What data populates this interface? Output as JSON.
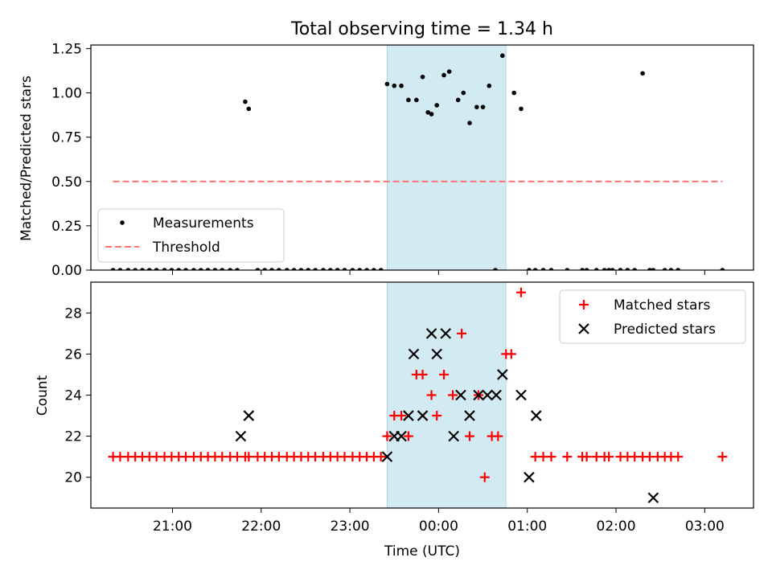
{
  "title": "Total observing time = 1.34 h",
  "colors": {
    "measurement": "#000000",
    "threshold": "#ff7070",
    "matched": "#ff0000",
    "predicted": "#000000",
    "observing_window": "#add8e6"
  },
  "chart_data": [
    {
      "type": "scatter",
      "panel": "top",
      "ylabel": "Matched/Predicted stars",
      "xlabel": "",
      "ylim": [
        0,
        1.27
      ],
      "yticks": [
        "0.00",
        "0.25",
        "0.50",
        "0.75",
        "1.00",
        "1.25"
      ],
      "ytick_values": [
        0,
        0.25,
        0.5,
        0.75,
        1.0,
        1.25
      ],
      "xlim_hours": [
        20.08,
        27.55
      ],
      "xtick_hours": [
        21,
        22,
        23,
        24,
        25,
        26,
        27
      ],
      "shaded_window_hours": [
        23.42,
        24.76
      ],
      "legend": {
        "placement": "lower-left",
        "entries": [
          "Measurements",
          "Threshold"
        ]
      },
      "threshold": {
        "y": 0.5,
        "x_hours": [
          20.33,
          27.2
        ]
      },
      "series": [
        {
          "name": "Measurements",
          "x_hours": [
            20.33,
            20.41,
            20.5,
            20.58,
            20.66,
            20.74,
            20.82,
            20.91,
            20.99,
            21.07,
            21.15,
            21.24,
            21.32,
            21.4,
            21.48,
            21.56,
            21.65,
            21.73,
            21.82,
            21.86,
            21.96,
            22.04,
            22.12,
            22.2,
            22.29,
            22.37,
            22.45,
            22.53,
            22.61,
            22.7,
            22.78,
            22.86,
            22.94,
            23.03,
            23.11,
            23.19,
            23.27,
            23.35,
            23.42,
            23.5,
            23.58,
            23.66,
            23.75,
            23.82,
            23.88,
            23.92,
            23.98,
            24.06,
            24.12,
            24.22,
            24.28,
            24.35,
            24.43,
            24.5,
            24.57,
            24.64,
            24.72,
            24.85,
            24.93,
            25.02,
            25.09,
            25.18,
            25.27,
            25.45,
            25.62,
            25.67,
            25.78,
            25.87,
            25.92,
            25.96,
            26.05,
            26.13,
            26.21,
            26.3,
            26.38,
            26.42,
            26.55,
            26.62,
            26.7,
            27.2
          ],
          "y": [
            0,
            0,
            0,
            0,
            0,
            0,
            0,
            0,
            0,
            0,
            0,
            0,
            0,
            0,
            0,
            0,
            0,
            0,
            0.95,
            0.91,
            0,
            0,
            0,
            0,
            0,
            0,
            0,
            0,
            0,
            0,
            0,
            0,
            0,
            0,
            0,
            0,
            0,
            0,
            1.05,
            1.04,
            1.04,
            0.96,
            0.96,
            1.09,
            0.89,
            0.88,
            0.93,
            1.1,
            1.12,
            0.96,
            1.0,
            0.83,
            0.92,
            0.92,
            1.04,
            0,
            1.21,
            1.0,
            0.91,
            0,
            0,
            0,
            0,
            0,
            0,
            0,
            0,
            0,
            0,
            0,
            0,
            0,
            0,
            1.11,
            0,
            0,
            0,
            0,
            0,
            0
          ]
        }
      ]
    },
    {
      "type": "scatter",
      "panel": "bottom",
      "ylabel": "Count",
      "xlabel": "Time (UTC)",
      "ylim": [
        18.5,
        29.5
      ],
      "yticks": [
        "20",
        "22",
        "24",
        "26",
        "28"
      ],
      "ytick_values": [
        20,
        22,
        24,
        26,
        28
      ],
      "xlim_hours": [
        20.08,
        27.55
      ],
      "xtick_hours": [
        21,
        22,
        23,
        24,
        25,
        26,
        27
      ],
      "xtick_labels": [
        "21:00",
        "22:00",
        "23:00",
        "00:00",
        "01:00",
        "02:00",
        "03:00"
      ],
      "shaded_window_hours": [
        23.42,
        24.76
      ],
      "legend": {
        "placement": "upper-right",
        "entries": [
          "Matched stars",
          "Predicted stars"
        ]
      },
      "series": [
        {
          "name": "Matched stars",
          "marker": "plus",
          "points": [
            [
              20.33,
              21
            ],
            [
              20.41,
              21
            ],
            [
              20.5,
              21
            ],
            [
              20.58,
              21
            ],
            [
              20.66,
              21
            ],
            [
              20.74,
              21
            ],
            [
              20.82,
              21
            ],
            [
              20.91,
              21
            ],
            [
              20.99,
              21
            ],
            [
              21.07,
              21
            ],
            [
              21.15,
              21
            ],
            [
              21.24,
              21
            ],
            [
              21.32,
              21
            ],
            [
              21.4,
              21
            ],
            [
              21.48,
              21
            ],
            [
              21.56,
              21
            ],
            [
              21.65,
              21
            ],
            [
              21.73,
              21
            ],
            [
              21.82,
              21
            ],
            [
              21.86,
              21
            ],
            [
              21.96,
              21
            ],
            [
              22.04,
              21
            ],
            [
              22.12,
              21
            ],
            [
              22.2,
              21
            ],
            [
              22.29,
              21
            ],
            [
              22.37,
              21
            ],
            [
              22.45,
              21
            ],
            [
              22.53,
              21
            ],
            [
              22.61,
              21
            ],
            [
              22.7,
              21
            ],
            [
              22.78,
              21
            ],
            [
              22.86,
              21
            ],
            [
              22.94,
              21
            ],
            [
              23.03,
              21
            ],
            [
              23.11,
              21
            ],
            [
              23.19,
              21
            ],
            [
              23.27,
              21
            ],
            [
              23.35,
              21
            ],
            [
              23.42,
              22
            ],
            [
              23.5,
              23
            ],
            [
              23.58,
              23
            ],
            [
              23.66,
              22
            ],
            [
              23.75,
              25
            ],
            [
              23.82,
              25
            ],
            [
              23.92,
              24
            ],
            [
              23.98,
              23
            ],
            [
              24.06,
              25
            ],
            [
              24.16,
              24
            ],
            [
              24.26,
              27
            ],
            [
              24.35,
              22
            ],
            [
              24.45,
              24
            ],
            [
              24.52,
              20
            ],
            [
              24.6,
              22
            ],
            [
              24.67,
              22
            ],
            [
              24.76,
              26
            ],
            [
              24.82,
              26
            ],
            [
              24.93,
              29
            ],
            [
              25.09,
              21
            ],
            [
              25.18,
              21
            ],
            [
              25.27,
              21
            ],
            [
              25.45,
              21
            ],
            [
              25.62,
              21
            ],
            [
              25.67,
              21
            ],
            [
              25.78,
              21
            ],
            [
              25.87,
              21
            ],
            [
              25.92,
              21
            ],
            [
              26.05,
              21
            ],
            [
              26.13,
              21
            ],
            [
              26.21,
              21
            ],
            [
              26.3,
              21
            ],
            [
              26.38,
              21
            ],
            [
              26.47,
              21
            ],
            [
              26.55,
              21
            ],
            [
              26.62,
              21
            ],
            [
              26.7,
              21
            ],
            [
              27.2,
              21
            ]
          ]
        },
        {
          "name": "Predicted stars",
          "marker": "cross",
          "points": [
            [
              21.77,
              22
            ],
            [
              21.86,
              23
            ],
            [
              23.42,
              21
            ],
            [
              23.5,
              22
            ],
            [
              23.58,
              22
            ],
            [
              23.66,
              23
            ],
            [
              23.72,
              26
            ],
            [
              23.82,
              23
            ],
            [
              23.92,
              27
            ],
            [
              23.98,
              26
            ],
            [
              24.08,
              27
            ],
            [
              24.17,
              22
            ],
            [
              24.25,
              24
            ],
            [
              24.35,
              23
            ],
            [
              24.45,
              24
            ],
            [
              24.55,
              24
            ],
            [
              24.65,
              24
            ],
            [
              24.72,
              25
            ],
            [
              24.93,
              24
            ],
            [
              25.02,
              20
            ],
            [
              25.1,
              23
            ],
            [
              26.42,
              19
            ]
          ]
        }
      ]
    }
  ]
}
